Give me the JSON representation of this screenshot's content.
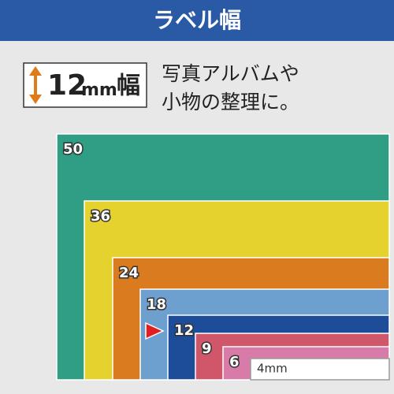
{
  "header": {
    "title": "ラベル幅"
  },
  "badge": {
    "number": "12",
    "unit": "mm",
    "suffix": "幅"
  },
  "description": [
    "写真アルバムや",
    "小物の整理に。"
  ],
  "widths": [
    {
      "label": "50",
      "color": "#2f9e84"
    },
    {
      "label": "36",
      "color": "#e6d22e"
    },
    {
      "label": "24",
      "color": "#d97b1e"
    },
    {
      "label": "18",
      "color": "#6d9fcf"
    },
    {
      "label": "12",
      "color": "#1d4c98"
    },
    {
      "label": "9",
      "color": "#d0566a"
    },
    {
      "label": "6",
      "color": "#d97ba9"
    },
    {
      "label": "4mm",
      "color": "#ffffff"
    }
  ]
}
